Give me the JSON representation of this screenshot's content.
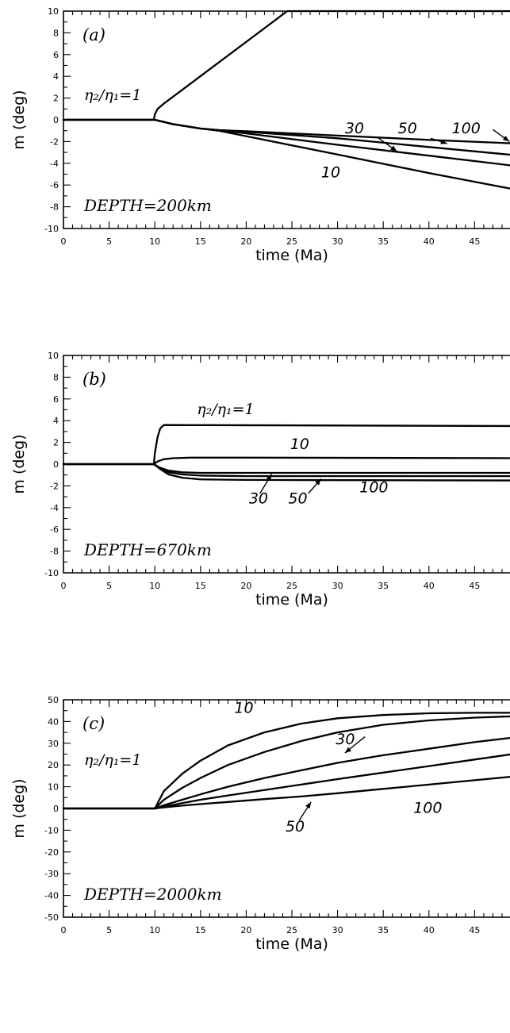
{
  "chart_data": [
    {
      "type": "line",
      "panel_label": "(a)",
      "annotation": "DEPTH=200km",
      "ratio_label": "η₂/η₁=1",
      "xlabel": "time (Ma)",
      "ylabel": "m (deg)",
      "xlim": [
        0,
        50
      ],
      "ylim": [
        -10,
        10
      ],
      "xticks": [
        0,
        5,
        10,
        15,
        20,
        25,
        30,
        35,
        40,
        45
      ],
      "yticks": [
        -10,
        -8,
        -6,
        -4,
        -2,
        0,
        2,
        4,
        6,
        8,
        10
      ],
      "series": [
        {
          "name": "1",
          "x": [
            0,
            9.9,
            10.0,
            10.3,
            11,
            24.5,
            50
          ],
          "y": [
            0,
            0,
            0.5,
            1.0,
            1.5,
            10,
            10
          ]
        },
        {
          "name": "10",
          "x": [
            0,
            10,
            12,
            15,
            17,
            20,
            30,
            40,
            50
          ],
          "y": [
            0,
            0,
            -0.4,
            -0.8,
            -1.0,
            -1.5,
            -3.2,
            -4.9,
            -6.5
          ]
        },
        {
          "name": "30",
          "x": [
            0,
            10,
            12,
            15,
            17,
            20,
            30,
            40,
            50
          ],
          "y": [
            0,
            0,
            -0.4,
            -0.8,
            -0.95,
            -1.25,
            -2.3,
            -3.3,
            -4.3
          ]
        },
        {
          "name": "50",
          "x": [
            0,
            10,
            12,
            15,
            17,
            20,
            30,
            40,
            50
          ],
          "y": [
            0,
            0,
            -0.4,
            -0.8,
            -0.95,
            -1.1,
            -1.7,
            -2.5,
            -3.3
          ]
        },
        {
          "name": "100",
          "x": [
            0,
            10,
            12,
            15,
            17,
            20,
            30,
            40,
            50
          ],
          "y": [
            0,
            0,
            -0.4,
            -0.8,
            -0.95,
            -1.05,
            -1.45,
            -1.85,
            -2.2
          ]
        }
      ],
      "curve_labels": [
        {
          "text": "30",
          "x": 30.8,
          "y": -1.25,
          "arrow_from": [
            34.5,
            -1.7
          ],
          "arrow_to": [
            36.5,
            -2.9
          ]
        },
        {
          "text": "50",
          "x": 36.6,
          "y": -1.25,
          "arrow_from": [
            40.2,
            -1.7
          ],
          "arrow_to": [
            42.0,
            -2.2
          ]
        },
        {
          "text": "100",
          "x": 42.5,
          "y": -1.25,
          "arrow_from": [
            47.0,
            -0.9
          ],
          "arrow_to": [
            48.8,
            -2.0
          ]
        },
        {
          "text": "10",
          "x": 28.2,
          "y": -5.3
        }
      ]
    },
    {
      "type": "line",
      "panel_label": "(b)",
      "annotation": "DEPTH=670km",
      "ratio_label": "η₂/η₁=1",
      "xlabel": "time (Ma)",
      "ylabel": "m (deg)",
      "xlim": [
        0,
        50
      ],
      "ylim": [
        -10,
        10
      ],
      "xticks": [
        0,
        5,
        10,
        15,
        20,
        25,
        30,
        35,
        40,
        45
      ],
      "yticks": [
        -10,
        -8,
        -6,
        -4,
        -2,
        0,
        2,
        4,
        6,
        8,
        10
      ],
      "series": [
        {
          "name": "1",
          "x": [
            0,
            9.9,
            10.0,
            10.3,
            10.6,
            11,
            50
          ],
          "y": [
            0,
            0,
            1.0,
            2.5,
            3.3,
            3.6,
            3.5
          ]
        },
        {
          "name": "10",
          "x": [
            0,
            9.9,
            10.3,
            11,
            12,
            14,
            20,
            50
          ],
          "y": [
            0,
            0,
            0.25,
            0.45,
            0.55,
            0.6,
            0.6,
            0.55
          ]
        },
        {
          "name": "30",
          "x": [
            0,
            9.9,
            10.5,
            11.5,
            13,
            15,
            20,
            50
          ],
          "y": [
            0,
            0,
            -0.3,
            -0.6,
            -0.75,
            -0.8,
            -0.8,
            -0.8
          ]
        },
        {
          "name": "50",
          "x": [
            0,
            9.9,
            10.5,
            11.5,
            13,
            15,
            20,
            50
          ],
          "y": [
            0,
            0,
            -0.35,
            -0.75,
            -0.95,
            -1.05,
            -1.1,
            -1.1
          ]
        },
        {
          "name": "100",
          "x": [
            0,
            9.9,
            10.5,
            11.5,
            13,
            15,
            20,
            50
          ],
          "y": [
            0,
            0,
            -0.4,
            -0.95,
            -1.25,
            -1.4,
            -1.45,
            -1.5
          ]
        }
      ],
      "curve_labels": [
        {
          "text": "η₂/η₁=1",
          "x": 14.6,
          "y": 4.6
        },
        {
          "text": "10",
          "x": 24.8,
          "y": 1.4
        },
        {
          "text": "30",
          "x": 20.3,
          "y": -3.6,
          "arrow_from": [
            21.5,
            -2.7
          ],
          "arrow_to": [
            22.8,
            -0.9
          ]
        },
        {
          "text": "50",
          "x": 24.6,
          "y": -3.6,
          "arrow_from": [
            26.8,
            -2.7
          ],
          "arrow_to": [
            28.2,
            -1.35
          ]
        },
        {
          "text": "100",
          "x": 32.4,
          "y": -2.6
        }
      ]
    },
    {
      "type": "line",
      "panel_label": "(c)",
      "annotation": "DEPTH=2000km",
      "ratio_label": "η₂/η₁=1",
      "xlabel": "time (Ma)",
      "ylabel": "m (deg)",
      "xlim": [
        0,
        50
      ],
      "ylim": [
        -50,
        50
      ],
      "xticks": [
        0,
        5,
        10,
        15,
        20,
        25,
        30,
        35,
        40,
        45
      ],
      "yticks": [
        -50,
        -40,
        -30,
        -20,
        -10,
        0,
        10,
        20,
        30,
        40,
        50
      ],
      "series": [
        {
          "name": "1",
          "x": [
            0,
            10,
            11,
            13,
            15,
            18,
            22,
            26,
            30,
            35,
            40,
            45,
            50
          ],
          "y": [
            0,
            0,
            8,
            16,
            22,
            29,
            35,
            39,
            41.5,
            43,
            43.8,
            44,
            44
          ]
        },
        {
          "name": "10",
          "x": [
            0,
            10,
            11,
            13,
            15,
            18,
            22,
            26,
            30,
            35,
            40,
            45,
            50
          ],
          "y": [
            0,
            0,
            4,
            9.5,
            14,
            20,
            26,
            31,
            35,
            38.5,
            40.5,
            41.8,
            42.5
          ]
        },
        {
          "name": "30",
          "x": [
            0,
            10,
            11,
            13,
            15,
            18,
            22,
            26,
            30,
            35,
            40,
            45,
            50
          ],
          "y": [
            0,
            0,
            1.5,
            4,
            6.5,
            10,
            14,
            17.5,
            21,
            24.5,
            27.5,
            30.5,
            33
          ]
        },
        {
          "name": "50",
          "x": [
            0,
            10,
            11,
            13,
            15,
            18,
            22,
            26,
            30,
            35,
            40,
            45,
            50
          ],
          "y": [
            0,
            0,
            0.8,
            2.5,
            4,
            6,
            8.5,
            11,
            13.5,
            16.5,
            19.5,
            22.5,
            25.5
          ]
        },
        {
          "name": "100",
          "x": [
            0,
            10,
            11,
            13,
            15,
            18,
            22,
            26,
            30,
            35,
            40,
            45,
            50
          ],
          "y": [
            0,
            0,
            0.5,
            1.3,
            2,
            3,
            4.3,
            5.5,
            7,
            9,
            11,
            13,
            15
          ]
        }
      ],
      "curve_labels": [
        {
          "text": "10",
          "x": 18.7,
          "y": 44
        },
        {
          "text": "30",
          "x": 29.8,
          "y": 29.5,
          "arrow_from": [
            33.0,
            33.0
          ],
          "arrow_to": [
            30.8,
            25.5
          ]
        },
        {
          "text": "50",
          "x": 24.3,
          "y": -10.5,
          "arrow_from": [
            25.8,
            -5.5
          ],
          "arrow_to": [
            27.1,
            3.0
          ]
        },
        {
          "text": "100",
          "x": 38.3,
          "y": -2
        }
      ]
    }
  ]
}
